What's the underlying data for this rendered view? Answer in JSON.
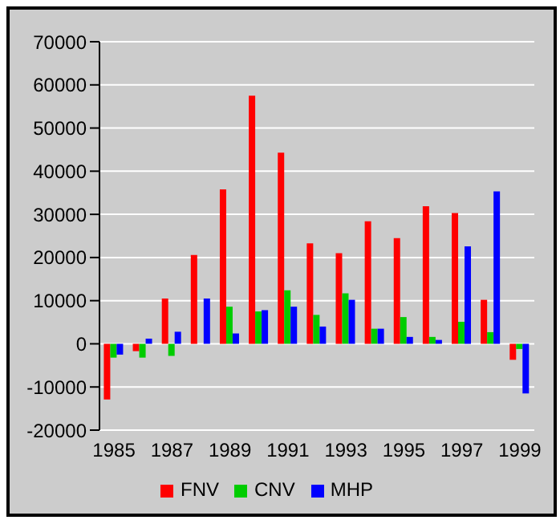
{
  "chart_data": {
    "type": "bar",
    "categories": [
      "1985",
      null,
      "1987",
      null,
      "1989",
      null,
      "1991",
      null,
      "1993",
      null,
      "1995",
      null,
      "1997",
      null,
      "1999"
    ],
    "series": [
      {
        "name": "FNV",
        "color": "#ff0000",
        "values": [
          -12900,
          -1700,
          10500,
          20600,
          35800,
          57500,
          44300,
          23300,
          21000,
          28400,
          24500,
          31900,
          30300,
          10200,
          -3700
        ]
      },
      {
        "name": "CNV",
        "color": "#00cc00",
        "values": [
          -3200,
          -3200,
          -2800,
          0,
          8600,
          7500,
          12400,
          6700,
          11700,
          3500,
          6200,
          1600,
          5100,
          2700,
          -1200
        ]
      },
      {
        "name": "MHP",
        "color": "#0000ff",
        "values": [
          -2500,
          1200,
          2800,
          10500,
          2400,
          7800,
          8600,
          4000,
          10200,
          3500,
          1600,
          900,
          22600,
          35300,
          -11500
        ]
      }
    ],
    "ylim": [
      -20000,
      70000
    ],
    "yticks": [
      -20000,
      -10000,
      0,
      10000,
      20000,
      30000,
      40000,
      50000,
      60000,
      70000
    ],
    "grid": "y",
    "legend": "bottom"
  }
}
